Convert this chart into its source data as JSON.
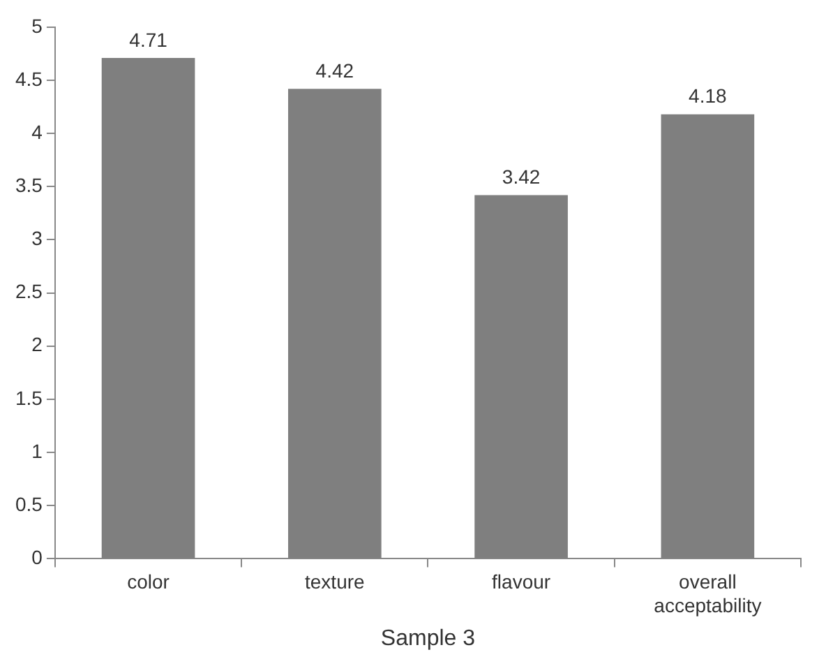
{
  "chart_data": {
    "type": "bar",
    "xlabel": "Sample 3",
    "categories": [
      "color",
      "texture",
      "flavour",
      "overall acceptability"
    ],
    "values": [
      4.71,
      4.42,
      3.42,
      4.18
    ],
    "color": "#7f7f7f",
    "ylim": [
      0,
      5
    ],
    "yticks": [
      0,
      0.5,
      1,
      1.5,
      2,
      2.5,
      3,
      3.5,
      4,
      4.5,
      5
    ],
    "grid": false,
    "legend": false,
    "data_labels": true
  }
}
